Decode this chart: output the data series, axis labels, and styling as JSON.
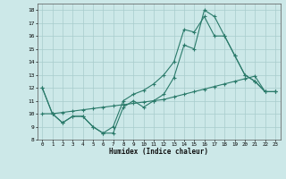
{
  "xlabel": "Humidex (Indice chaleur)",
  "xlim": [
    0,
    23
  ],
  "ylim": [
    8,
    18
  ],
  "xticks": [
    0,
    1,
    2,
    3,
    4,
    5,
    6,
    7,
    8,
    9,
    10,
    11,
    12,
    13,
    14,
    15,
    16,
    17,
    18,
    19,
    20,
    21,
    22,
    23
  ],
  "yticks": [
    8,
    9,
    10,
    11,
    12,
    13,
    14,
    15,
    16,
    17,
    18
  ],
  "background_color": "#cce8e8",
  "grid_color": "#a8cccc",
  "line_color": "#2a7a6a",
  "series": [
    {
      "x": [
        0,
        1,
        2,
        3,
        4,
        5,
        6,
        7,
        8,
        9,
        10,
        11,
        12,
        13,
        14,
        15,
        16,
        17,
        18,
        19,
        20,
        21,
        22,
        23
      ],
      "y": [
        12,
        10,
        9.3,
        9.8,
        9.8,
        9.0,
        8.5,
        8.5,
        10.5,
        11.0,
        10.5,
        11.0,
        11.5,
        12.8,
        15.3,
        15.0,
        18.0,
        17.5,
        16.0,
        14.5,
        13.0,
        12.5,
        11.7,
        11.7
      ]
    },
    {
      "x": [
        0,
        1,
        2,
        3,
        4,
        5,
        6,
        7,
        8,
        9,
        10,
        11,
        12,
        13,
        14,
        15,
        16,
        17,
        18,
        19,
        20,
        21,
        22,
        23
      ],
      "y": [
        12,
        10,
        9.3,
        9.8,
        9.8,
        9.0,
        8.5,
        9.0,
        11.0,
        11.5,
        11.8,
        12.3,
        13.0,
        14.0,
        16.5,
        16.3,
        17.5,
        16.0,
        16.0,
        14.5,
        13.0,
        12.5,
        11.7,
        11.7
      ]
    },
    {
      "x": [
        0,
        1,
        2,
        3,
        4,
        5,
        6,
        7,
        8,
        9,
        10,
        11,
        12,
        13,
        14,
        15,
        16,
        17,
        18,
        19,
        20,
        21,
        22,
        23
      ],
      "y": [
        10,
        10,
        10.1,
        10.2,
        10.3,
        10.4,
        10.5,
        10.6,
        10.7,
        10.8,
        10.9,
        11.0,
        11.1,
        11.3,
        11.5,
        11.7,
        11.9,
        12.1,
        12.3,
        12.5,
        12.7,
        12.9,
        11.7,
        11.7
      ]
    }
  ]
}
